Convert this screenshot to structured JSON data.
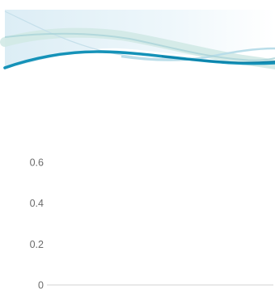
{
  "chart_data": {
    "type": "line",
    "title": "",
    "xlabel": "",
    "ylabel": "",
    "ylim": [
      0,
      0.6
    ],
    "y_ticks": [
      {
        "value": 0.6,
        "label": "0.6"
      },
      {
        "value": 0.4,
        "label": "0.4"
      },
      {
        "value": 0.2,
        "label": "0.2"
      },
      {
        "value": 0,
        "label": "0"
      }
    ],
    "grid": false,
    "series": []
  },
  "colors": {
    "accent": "#1592b8",
    "accent_dark": "#0a7ea6",
    "wave_light": "#b9dde9",
    "wave_pale": "#d2e9e6",
    "banner_fill": "#e9f4f9",
    "axis": "#d3d3d3",
    "tick_text": "#6b6b6b"
  },
  "decoration": {
    "banner": "wave-banner"
  }
}
